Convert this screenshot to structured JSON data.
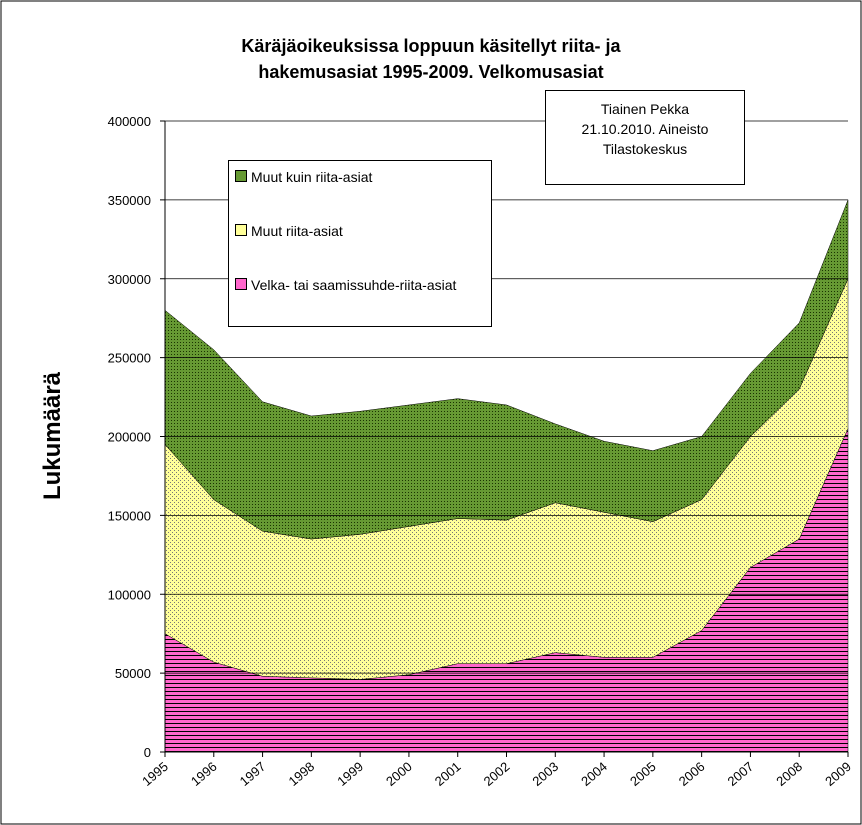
{
  "chart_data": {
    "type": "stacked_area",
    "title": [
      "Käräjäoikeuksissa loppuun käsitellyt riita- ja",
      "hakemusasiat 1995-2009. Velkomusasiat"
    ],
    "annotation": [
      "Tiainen Pekka",
      "21.10.2010. Aineisto",
      "Tilastokeskus"
    ],
    "y_label": "Lukumäärä",
    "categories": [
      "1995",
      "1996",
      "1997",
      "1998",
      "1999",
      "2000",
      "2001",
      "2002",
      "2003",
      "2004",
      "2005",
      "2006",
      "2007",
      "2008",
      "2009"
    ],
    "series": [
      {
        "name": "Velka- tai saamissuhde-riita-asiat",
        "color": "#ff66cc",
        "values": [
          75000,
          57000,
          48000,
          47000,
          46000,
          49000,
          56000,
          56000,
          63000,
          60000,
          60000,
          77000,
          117000,
          135000,
          205000
        ]
      },
      {
        "name": "Muut riita-asiat",
        "color": "#ffff99",
        "values": [
          120000,
          103000,
          92000,
          88000,
          92000,
          94000,
          92000,
          91000,
          95000,
          92000,
          86000,
          83000,
          83000,
          95000,
          95000
        ]
      },
      {
        "name": "Muut kuin riita-asiat",
        "color": "#669933",
        "values": [
          85000,
          95000,
          82000,
          78000,
          78000,
          77000,
          76000,
          73000,
          50000,
          45000,
          45000,
          40000,
          40000,
          42000,
          50000
        ]
      }
    ],
    "ylim": [
      0,
      400000
    ],
    "yticks": [
      0,
      50000,
      100000,
      150000,
      200000,
      250000,
      300000,
      350000,
      400000
    ],
    "grid": true
  }
}
